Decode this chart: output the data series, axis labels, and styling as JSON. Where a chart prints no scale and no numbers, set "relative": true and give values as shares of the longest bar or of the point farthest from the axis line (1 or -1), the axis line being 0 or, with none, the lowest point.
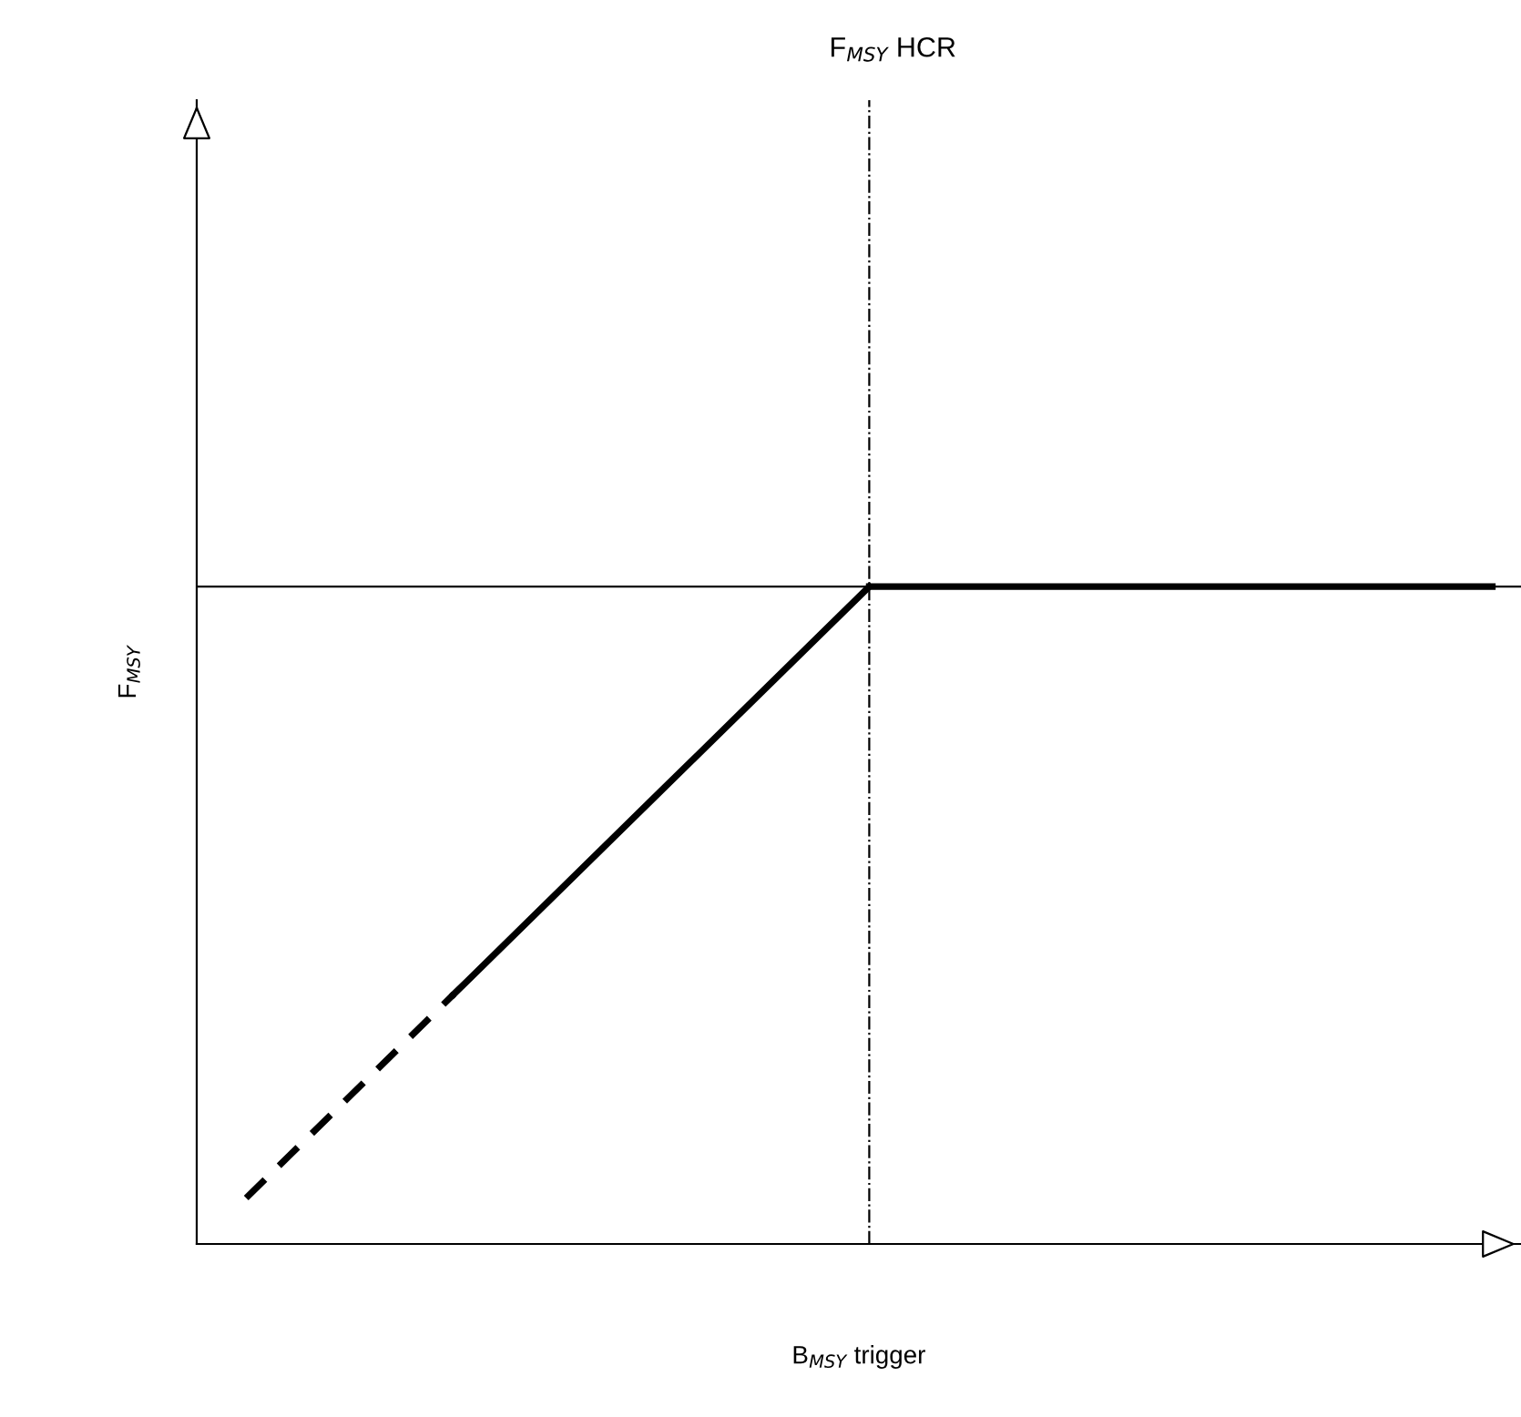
{
  "chart_data": {
    "type": "line",
    "title": "F$_{MSY}$ HCR",
    "xlabel": "B$_{MSY}$ trigger",
    "ylabel": "F$_{MSY}$",
    "relative": true,
    "tick_labels": false,
    "marker": "none",
    "categories": [
      null,
      null,
      null,
      null,
      null,
      null,
      null
    ],
    "series": [
      {
        "values": [
          0.07,
          0.38,
          null,
          null,
          null,
          null,
          null
        ],
        "color": "#000000",
        "line_style": "dashed"
      },
      {
        "values": [
          null,
          0.38,
          0.69,
          1,
          null,
          null,
          null
        ],
        "color": "#000000",
        "line_style": "solid"
      },
      {
        "values": [
          null,
          null,
          null,
          1,
          1,
          1,
          1
        ],
        "color": "#000000",
        "line_style": "solid"
      }
    ],
    "ref_lines": [
      {
        "axis": "y",
        "value": 1,
        "color": "#000000",
        "line_style": "solid"
      },
      {
        "axis": "x",
        "color": "#000000",
        "line_style": "dashdot"
      }
    ]
  }
}
